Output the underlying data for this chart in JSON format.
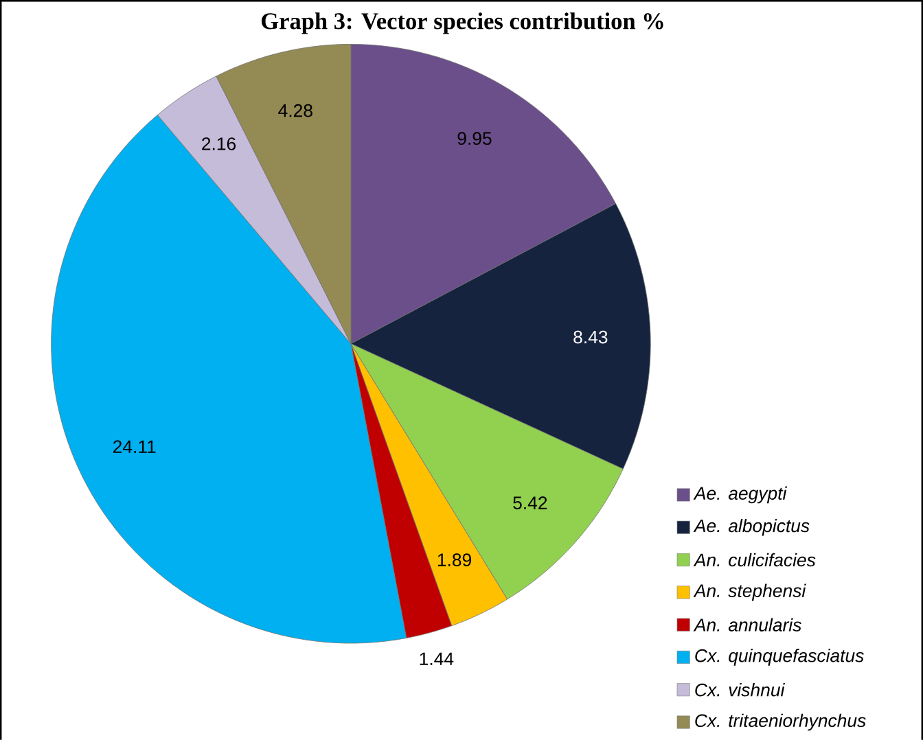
{
  "chart_data": {
    "type": "pie",
    "title": "Graph 3: Vector species contribution %",
    "categories": [
      "Ae. aegypti",
      "Ae. albopictus",
      "An. culicifacies",
      "An. stephensi",
      "An. annularis",
      "Cx. quinquefasciatus",
      "Cx. vishnui",
      "Cx. tritaeniorhynchus"
    ],
    "values": [
      9.95,
      8.43,
      5.42,
      1.89,
      1.44,
      24.11,
      2.16,
      4.28
    ],
    "colors": [
      "#6b4f8a",
      "#16233f",
      "#92d050",
      "#ffc000",
      "#c00000",
      "#00b0f0",
      "#c5bcd9",
      "#948a54"
    ],
    "data_labels": true,
    "legend": "bottom right"
  }
}
